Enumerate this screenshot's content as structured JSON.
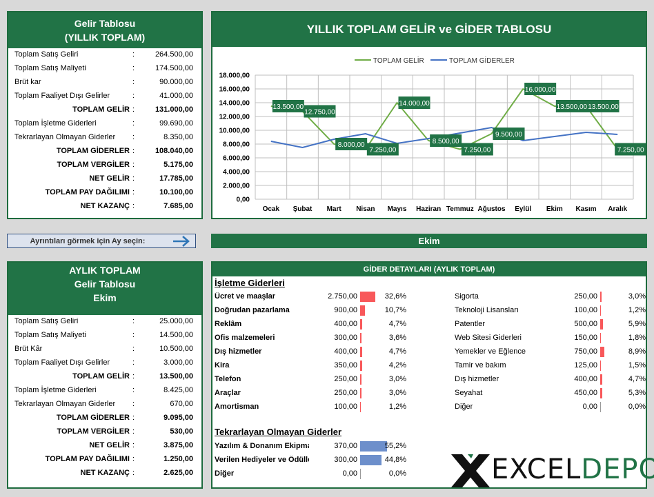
{
  "yearly": {
    "title1": "Gelir Tablosu",
    "title2": "(YILLIK TOPLAM)",
    "rows": [
      {
        "label": "Toplam Satış Geliri",
        "value": "264.500,00",
        "bold": false
      },
      {
        "label": "Toplam Satış Maliyeti",
        "value": "174.500,00",
        "bold": false
      },
      {
        "label": "Brüt kar",
        "value": "90.000,00",
        "bold": false
      },
      {
        "label": "Toplam Faaliyet Dışı Gelirler",
        "value": "41.000,00",
        "bold": false
      },
      {
        "label": "TOPLAM GELİR",
        "value": "131.000,00",
        "bold": true
      },
      {
        "label": "Toplam İşletme Giderleri",
        "value": "99.690,00",
        "bold": false
      },
      {
        "label": "Tekrarlayan Olmayan Giderler",
        "value": "8.350,00",
        "bold": false
      },
      {
        "label": "TOPLAM GİDERLER",
        "value": "108.040,00",
        "bold": true
      },
      {
        "label": "TOPLAM VERGİLER",
        "value": "5.175,00",
        "bold": true
      },
      {
        "label": "NET GELİR",
        "value": "17.785,00",
        "bold": true
      },
      {
        "label": "TOPLAM PAY DAĞILIMI",
        "value": "10.100,00",
        "bold": true
      },
      {
        "label": "NET KAZANÇ",
        "value": "7.685,00",
        "bold": true
      }
    ]
  },
  "chart_title": "YILLIK TOPLAM GELİR ve GİDER TABLOSU",
  "chart_data": {
    "type": "line",
    "categories": [
      "Ocak",
      "Şubat",
      "Mart",
      "Nisan",
      "Mayıs",
      "Haziran",
      "Temmuz",
      "Ağustos",
      "Eylül",
      "Ekim",
      "Kasım",
      "Aralık"
    ],
    "series": [
      {
        "name": "TOPLAM GELİR",
        "color": "#70ad47",
        "values": [
          13500,
          12750,
          8000,
          7250,
          14000,
          8500,
          7250,
          9500,
          16000,
          13500,
          13500,
          7250
        ],
        "labels": [
          "13.500,00",
          "12.750,00",
          "8.000,00",
          "7.250,00",
          "14.000,00",
          "8.500,00",
          "7.250,00",
          "9.500,00",
          "16.000,00",
          "13.500,00",
          "13.500,00",
          "7.250,00"
        ]
      },
      {
        "name": "TOPLAM GİDERLER",
        "color": "#4472c4",
        "values": [
          8400,
          7500,
          8700,
          9500,
          8100,
          8800,
          9600,
          10400,
          8500,
          9100,
          9700,
          9400
        ]
      }
    ],
    "ylim": [
      0,
      18000
    ],
    "yticks": [
      "0,00",
      "2.000,00",
      "4.000,00",
      "6.000,00",
      "8.000,00",
      "10.000,00",
      "12.000,00",
      "14.000,00",
      "16.000,00",
      "18.000,00"
    ],
    "legend": "top"
  },
  "selector": {
    "label": "Ayrıntıları görmek için Ay seçin:"
  },
  "selected_month": "Ekim",
  "monthly": {
    "title1": "AYLIK TOPLAM",
    "title2": "Gelir Tablosu",
    "title3": "Ekim",
    "rows": [
      {
        "label": "Toplam Satış Geliri",
        "value": "25.000,00",
        "bold": false
      },
      {
        "label": "Toplam Satış Maliyeti",
        "value": "14.500,00",
        "bold": false
      },
      {
        "label": "Brüt Kâr",
        "value": "10.500,00",
        "bold": false
      },
      {
        "label": "Toplam Faaliyet Dışı Gelirler",
        "value": "3.000,00",
        "bold": false
      },
      {
        "label": "TOPLAM GELİR",
        "value": "13.500,00",
        "bold": true
      },
      {
        "label": "Toplam İşletme Giderleri",
        "value": "8.425,00",
        "bold": false
      },
      {
        "label": "Tekrarlayan Olmayan Giderler",
        "value": "670,00",
        "bold": false
      },
      {
        "label": "TOPLAM GİDERLER",
        "value": "9.095,00",
        "bold": true
      },
      {
        "label": "TOPLAM VERGİLER",
        "value": "530,00",
        "bold": true
      },
      {
        "label": "NET GELİR",
        "value": "3.875,00",
        "bold": true
      },
      {
        "label": "TOPLAM PAY DAĞILIMI",
        "value": "1.250,00",
        "bold": true
      },
      {
        "label": "NET KAZANÇ",
        "value": "2.625,00",
        "bold": true
      }
    ]
  },
  "details": {
    "header": "GİDER DETAYLARI (AYLIK TOPLAM)",
    "operating_title": "İşletme Giderleri",
    "operating_left": [
      {
        "name": "Ücret ve maaşlar",
        "amount": "2.750,00",
        "pct": "32,6%",
        "frac": 0.326
      },
      {
        "name": "Doğrudan pazarlama",
        "amount": "900,00",
        "pct": "10,7%",
        "frac": 0.107
      },
      {
        "name": "Reklâm",
        "amount": "400,00",
        "pct": "4,7%",
        "frac": 0.047
      },
      {
        "name": "Ofis malzemeleri",
        "amount": "300,00",
        "pct": "3,6%",
        "frac": 0.036
      },
      {
        "name": "Dış hizmetler",
        "amount": "400,00",
        "pct": "4,7%",
        "frac": 0.047
      },
      {
        "name": "Kira",
        "amount": "350,00",
        "pct": "4,2%",
        "frac": 0.042
      },
      {
        "name": "Telefon",
        "amount": "250,00",
        "pct": "3,0%",
        "frac": 0.03
      },
      {
        "name": "Araçlar",
        "amount": "250,00",
        "pct": "3,0%",
        "frac": 0.03
      },
      {
        "name": "Amortisman",
        "amount": "100,00",
        "pct": "1,2%",
        "frac": 0.012
      }
    ],
    "operating_right": [
      {
        "name": "Sigorta",
        "amount": "250,00",
        "pct": "3,0%",
        "frac": 0.03
      },
      {
        "name": "Teknoloji Lisansları",
        "amount": "100,00",
        "pct": "1,2%",
        "frac": 0.012
      },
      {
        "name": "Patentler",
        "amount": "500,00",
        "pct": "5,9%",
        "frac": 0.059
      },
      {
        "name": "Web Sitesi Giderleri",
        "amount": "150,00",
        "pct": "1,8%",
        "frac": 0.018
      },
      {
        "name": "Yemekler ve Eğlence",
        "amount": "750,00",
        "pct": "8,9%",
        "frac": 0.089
      },
      {
        "name": "Tamir ve bakım",
        "amount": "125,00",
        "pct": "1,5%",
        "frac": 0.015
      },
      {
        "name": "Dış hizmetler",
        "amount": "400,00",
        "pct": "4,7%",
        "frac": 0.047
      },
      {
        "name": "Seyahat",
        "amount": "450,00",
        "pct": "5,3%",
        "frac": 0.053
      },
      {
        "name": "Diğer",
        "amount": "0,00",
        "pct": "0,0%",
        "frac": 0.0
      }
    ],
    "nonrecurring_title": "Tekrarlayan Olmayan Giderler",
    "nonrecurring": [
      {
        "name": "Yazılım & Donanım Ekipmanları",
        "amount": "370,00",
        "pct": "55,2%",
        "frac": 0.552
      },
      {
        "name": "Verilen Hediyeler ve Ödüller",
        "amount": "300,00",
        "pct": "44,8%",
        "frac": 0.448
      },
      {
        "name": "Diğer",
        "amount": "0,00",
        "pct": "0,0%",
        "frac": 0.0
      }
    ],
    "op_bar_color": "#f8585a",
    "nr_bar_color": "#6d8fcb"
  },
  "logo": {
    "text1": "EXCEL",
    "text2": "DEPO"
  }
}
